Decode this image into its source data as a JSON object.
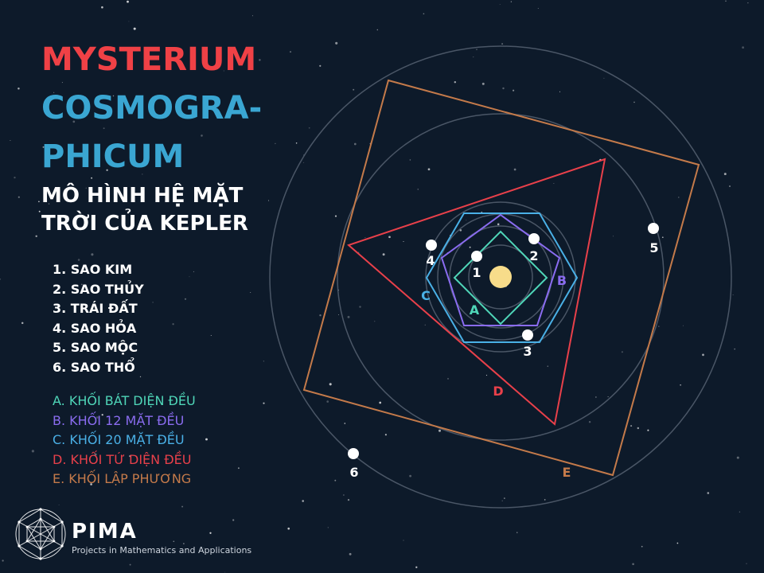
{
  "title": {
    "line1": "MYSTERIUM",
    "line2": "COSMOGRA-",
    "line3": "PHICUM",
    "subtitle_line1": "MÔ HÌNH HỆ MẶT",
    "subtitle_line2": "TRỜI CỦA KEPLER"
  },
  "planets": [
    {
      "label": "1. SAO KIM",
      "number": "1"
    },
    {
      "label": "2. SAO THỦY",
      "number": "2"
    },
    {
      "label": "3. TRÁI ĐẤT",
      "number": "3"
    },
    {
      "label": "4. SAO HỎA",
      "number": "4"
    },
    {
      "label": "5. SAO MỘC",
      "number": "5"
    },
    {
      "label": "6. SAO THỔ",
      "number": "6"
    }
  ],
  "solids": [
    {
      "label": "A. KHỐI BÁT DIỆN ĐỀU",
      "letter": "A",
      "color": "#4fd6b8"
    },
    {
      "label": "B. KHỐI 12 MẶT ĐỀU",
      "letter": "B",
      "color": "#8a6cf0"
    },
    {
      "label": "C. KHỐI 20 MẶT ĐỀU",
      "letter": "C",
      "color": "#4ab0e6"
    },
    {
      "label": "D. KHỐI TỨ DIỆN ĐỀU",
      "letter": "D",
      "color": "#e8404a"
    },
    {
      "label": "E. KHỐI LẬP PHƯƠNG",
      "letter": "E",
      "color": "#c47a4a"
    }
  ],
  "colors": {
    "background": "#0d1a2a",
    "title_red": "#ef4146",
    "title_blue": "#3aa6d2",
    "orbit": "#4a5666",
    "sun": "#f7dc8a",
    "planet": "#ffffff"
  },
  "brand": {
    "name": "PIMA",
    "tagline": "Projects in Mathematics and Applications",
    "logo_icon": "geodesic-sphere-icon"
  }
}
